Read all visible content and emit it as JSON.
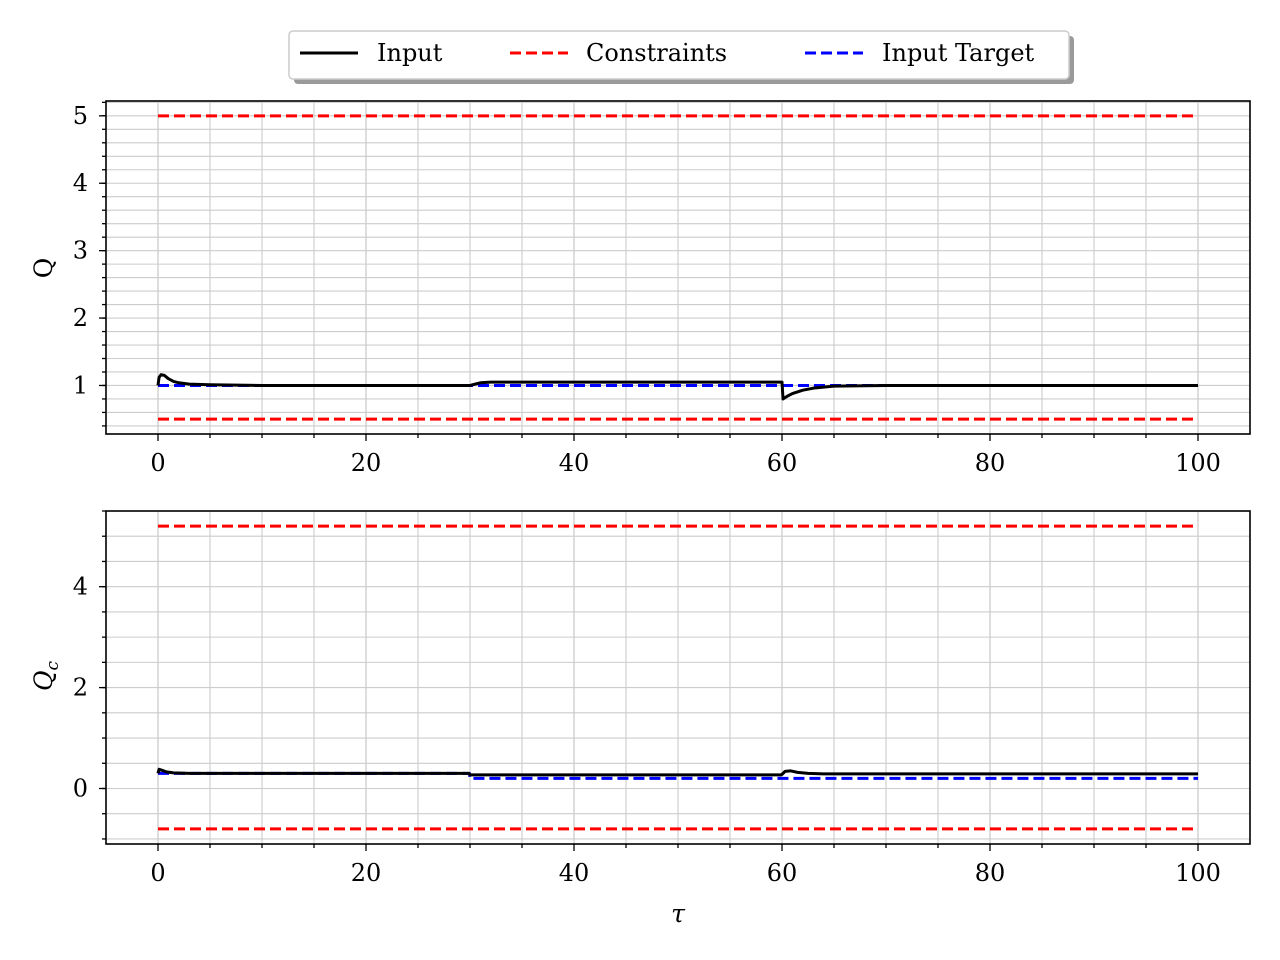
{
  "legend": {
    "placement": "top-center",
    "entries": [
      {
        "label": "Input",
        "color": "#000000",
        "style": "solid"
      },
      {
        "label": "Constraints",
        "color": "#ff0000",
        "style": "dashed"
      },
      {
        "label": "Input Target",
        "color": "#0000ff",
        "style": "dashed"
      }
    ]
  },
  "chart_data": [
    {
      "type": "line",
      "ylabel": "Q",
      "xlabel": "",
      "xlim": [
        -5,
        105
      ],
      "ylim": [
        0.28,
        5.22
      ],
      "grid": true,
      "xticks": [
        0,
        20,
        40,
        60,
        80,
        100
      ],
      "yticks": [
        1,
        2,
        3,
        4,
        5
      ],
      "series": [
        {
          "name": "Input",
          "color": "#000000",
          "style": "solid",
          "x": [
            0,
            0.1,
            0.3,
            0.6,
            1.0,
            1.5,
            2,
            3,
            5,
            10,
            20,
            29.9,
            30.0,
            30.5,
            31,
            32,
            35,
            45,
            59.9,
            60.0,
            60.1,
            60.5,
            61,
            62,
            63,
            65,
            70,
            80,
            100
          ],
          "y": [
            1.0,
            1.12,
            1.16,
            1.15,
            1.1,
            1.06,
            1.04,
            1.02,
            1.01,
            1.0,
            1.0,
            1.0,
            1.0,
            1.02,
            1.04,
            1.05,
            1.05,
            1.05,
            1.05,
            1.05,
            0.8,
            0.84,
            0.88,
            0.93,
            0.96,
            0.99,
            1.0,
            1.0,
            1.0
          ]
        },
        {
          "name": "Constraints",
          "color": "#ff0000",
          "style": "dashed",
          "x": [
            0,
            100
          ],
          "y": [
            5.0,
            5.0
          ]
        },
        {
          "name": "Constraints",
          "color": "#ff0000",
          "style": "dashed",
          "x": [
            0,
            100
          ],
          "y": [
            0.5,
            0.5
          ]
        },
        {
          "name": "Input Target",
          "color": "#0000ff",
          "style": "dashed",
          "x": [
            0,
            100
          ],
          "y": [
            1.0,
            1.0
          ]
        }
      ]
    },
    {
      "type": "line",
      "ylabel": "Q_c",
      "xlabel": "τ",
      "xlim": [
        -5,
        105
      ],
      "ylim": [
        -1.1,
        5.5
      ],
      "grid": true,
      "xticks": [
        0,
        20,
        40,
        60,
        80,
        100
      ],
      "yticks": [
        0,
        2,
        4
      ],
      "series": [
        {
          "name": "Input",
          "color": "#000000",
          "style": "solid",
          "x": [
            0,
            0.1,
            0.4,
            0.8,
            1.5,
            3,
            10,
            29.9,
            30.0,
            30.3,
            40,
            59.9,
            60.0,
            60.3,
            60.8,
            61.5,
            62.5,
            64,
            70,
            100
          ],
          "y": [
            0.3,
            0.38,
            0.36,
            0.33,
            0.31,
            0.3,
            0.3,
            0.3,
            0.27,
            0.27,
            0.27,
            0.27,
            0.28,
            0.34,
            0.35,
            0.32,
            0.3,
            0.29,
            0.29,
            0.29
          ]
        },
        {
          "name": "Constraints",
          "color": "#ff0000",
          "style": "dashed",
          "x": [
            0,
            100
          ],
          "y": [
            5.2,
            5.2
          ]
        },
        {
          "name": "Constraints",
          "color": "#ff0000",
          "style": "dashed",
          "x": [
            0,
            100
          ],
          "y": [
            -0.8,
            -0.8
          ]
        },
        {
          "name": "Input Target",
          "color": "#0000ff",
          "style": "dashed",
          "x": [
            0,
            29.95,
            30.0,
            100
          ],
          "y": [
            0.3,
            0.3,
            0.2,
            0.2
          ]
        }
      ]
    }
  ]
}
